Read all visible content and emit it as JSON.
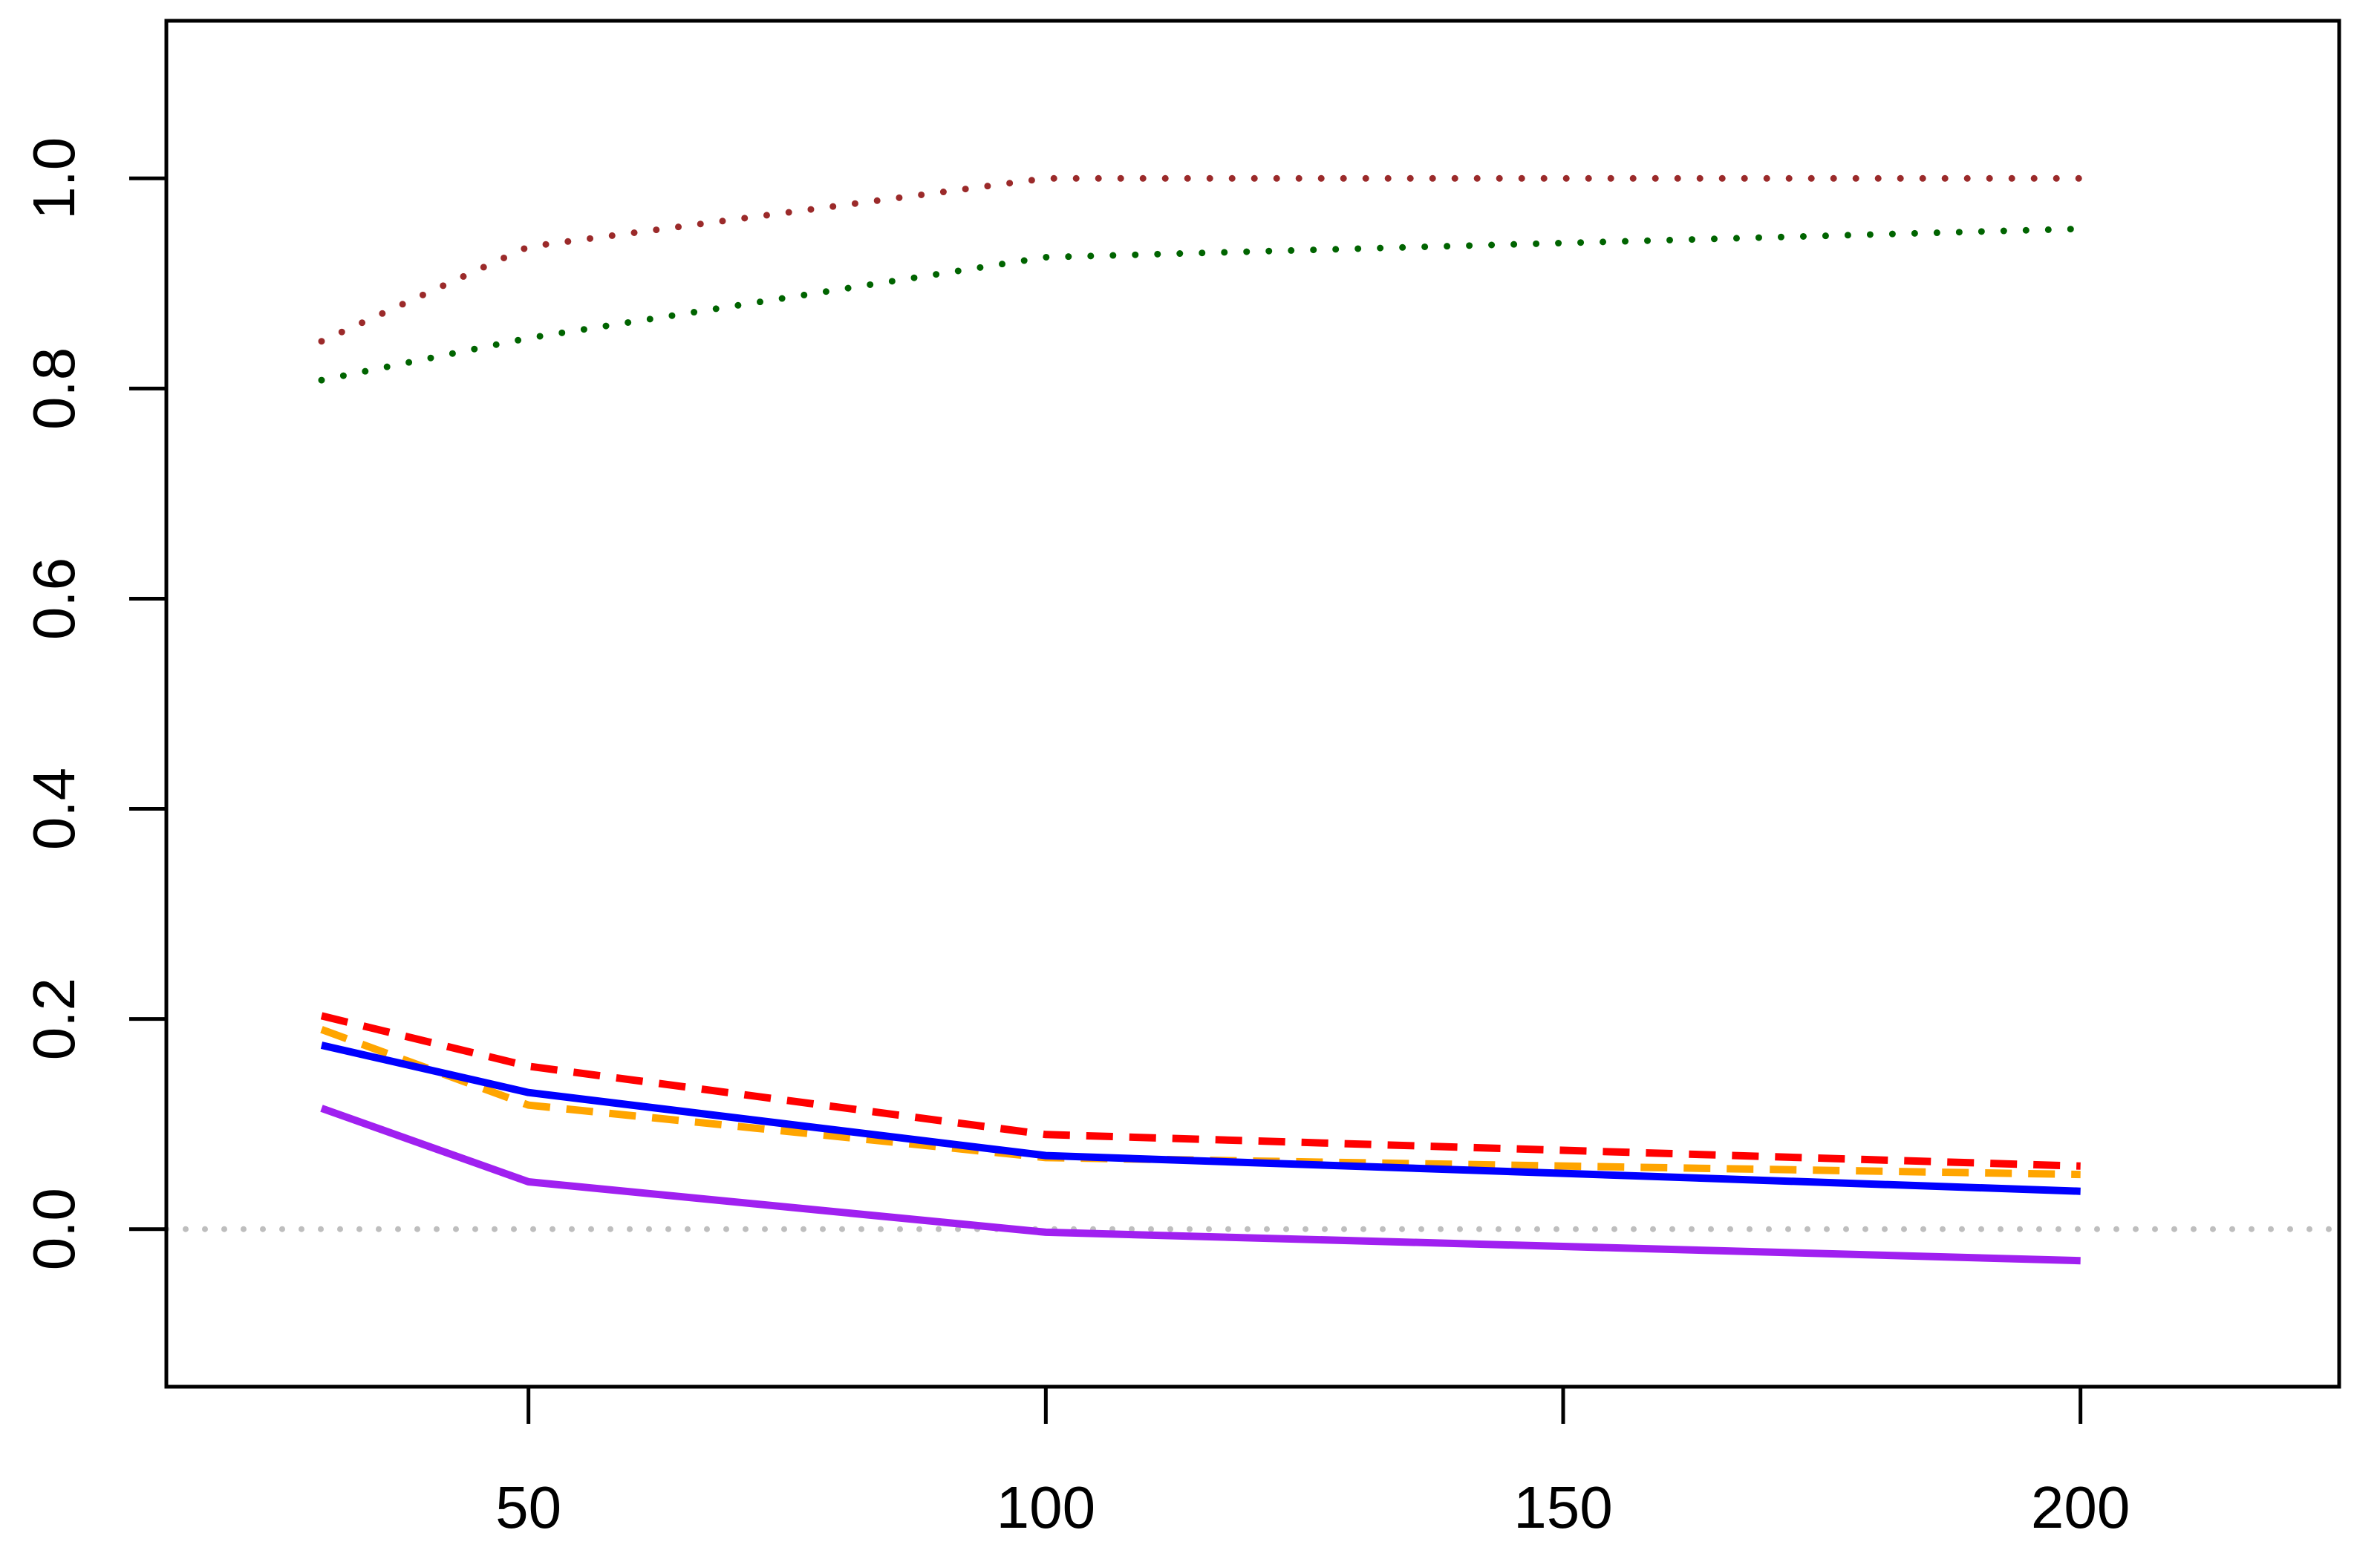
{
  "chart_data": {
    "type": "line",
    "title": "",
    "xlabel": "",
    "ylabel": "",
    "xlim": [
      15,
      225
    ],
    "ylim": [
      -0.15,
      1.15
    ],
    "x_ticks": [
      {
        "value": 50,
        "label": "50"
      },
      {
        "value": 100,
        "label": "100"
      },
      {
        "value": 150,
        "label": "150"
      },
      {
        "value": 200,
        "label": "200"
      }
    ],
    "y_ticks": [
      {
        "value": 0.0,
        "label": "0.0"
      },
      {
        "value": 0.2,
        "label": "0.2"
      },
      {
        "value": 0.4,
        "label": "0.4"
      },
      {
        "value": 0.6,
        "label": "0.6"
      },
      {
        "value": 0.8,
        "label": "0.8"
      },
      {
        "value": 1.0,
        "label": "1.0"
      }
    ],
    "reference_line": {
      "y": 0.0,
      "color": "#bebebe",
      "style": "dotted"
    },
    "grid": false,
    "series": [
      {
        "color": "#9b2a2a",
        "style": "dotted",
        "x": [
          30,
          50,
          100,
          200
        ],
        "y": [
          0.845,
          0.935,
          1.0,
          1.0
        ]
      },
      {
        "color": "#006400",
        "style": "dotted",
        "x": [
          30,
          50,
          100,
          200
        ],
        "y": [
          0.808,
          0.848,
          0.925,
          0.952
        ]
      },
      {
        "color": "#ff0000",
        "style": "dashed",
        "x": [
          30,
          50,
          100,
          200
        ],
        "y": [
          0.203,
          0.155,
          0.09,
          0.06
        ]
      },
      {
        "color": "#ffa500",
        "style": "dashed",
        "x": [
          30,
          50,
          100,
          200
        ],
        "y": [
          0.19,
          0.118,
          0.068,
          0.052
        ]
      },
      {
        "color": "#0000ff",
        "style": "solid",
        "x": [
          30,
          50,
          100,
          200
        ],
        "y": [
          0.175,
          0.13,
          0.07,
          0.036
        ]
      },
      {
        "color": "#a020f0",
        "style": "solid",
        "x": [
          30,
          50,
          100,
          200
        ],
        "y": [
          0.115,
          0.045,
          -0.003,
          -0.03
        ]
      }
    ]
  }
}
